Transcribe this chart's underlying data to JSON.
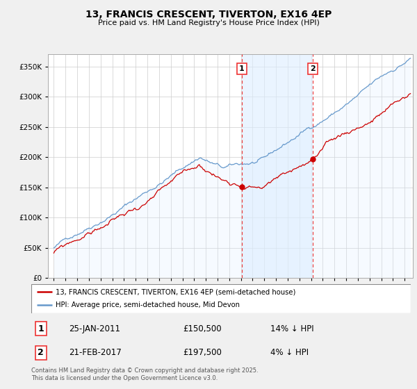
{
  "title": "13, FRANCIS CRESCENT, TIVERTON, EX16 4EP",
  "subtitle": "Price paid vs. HM Land Registry's House Price Index (HPI)",
  "legend_label_red": "13, FRANCIS CRESCENT, TIVERTON, EX16 4EP (semi-detached house)",
  "legend_label_blue": "HPI: Average price, semi-detached house, Mid Devon",
  "sale1_date": "25-JAN-2011",
  "sale1_price": 150500,
  "sale1_note": "14% ↓ HPI",
  "sale2_date": "21-FEB-2017",
  "sale2_price": 197500,
  "sale2_note": "4% ↓ HPI",
  "footer": "Contains HM Land Registry data © Crown copyright and database right 2025.\nThis data is licensed under the Open Government Licence v3.0.",
  "ylim": [
    0,
    370000
  ],
  "yticks": [
    0,
    50000,
    100000,
    150000,
    200000,
    250000,
    300000,
    350000
  ],
  "x_start_year": 1995,
  "x_end_year": 2025,
  "sale1_x": 2011.07,
  "sale2_x": 2017.13,
  "background_color": "#f0f0f0",
  "plot_bg_color": "#ffffff",
  "red_color": "#cc0000",
  "blue_color": "#6699cc",
  "blue_fill_color": "#ddeeff",
  "shade_fill_color": "#ddeeff",
  "grid_color": "#cccccc",
  "vline_color": "#ee3333"
}
